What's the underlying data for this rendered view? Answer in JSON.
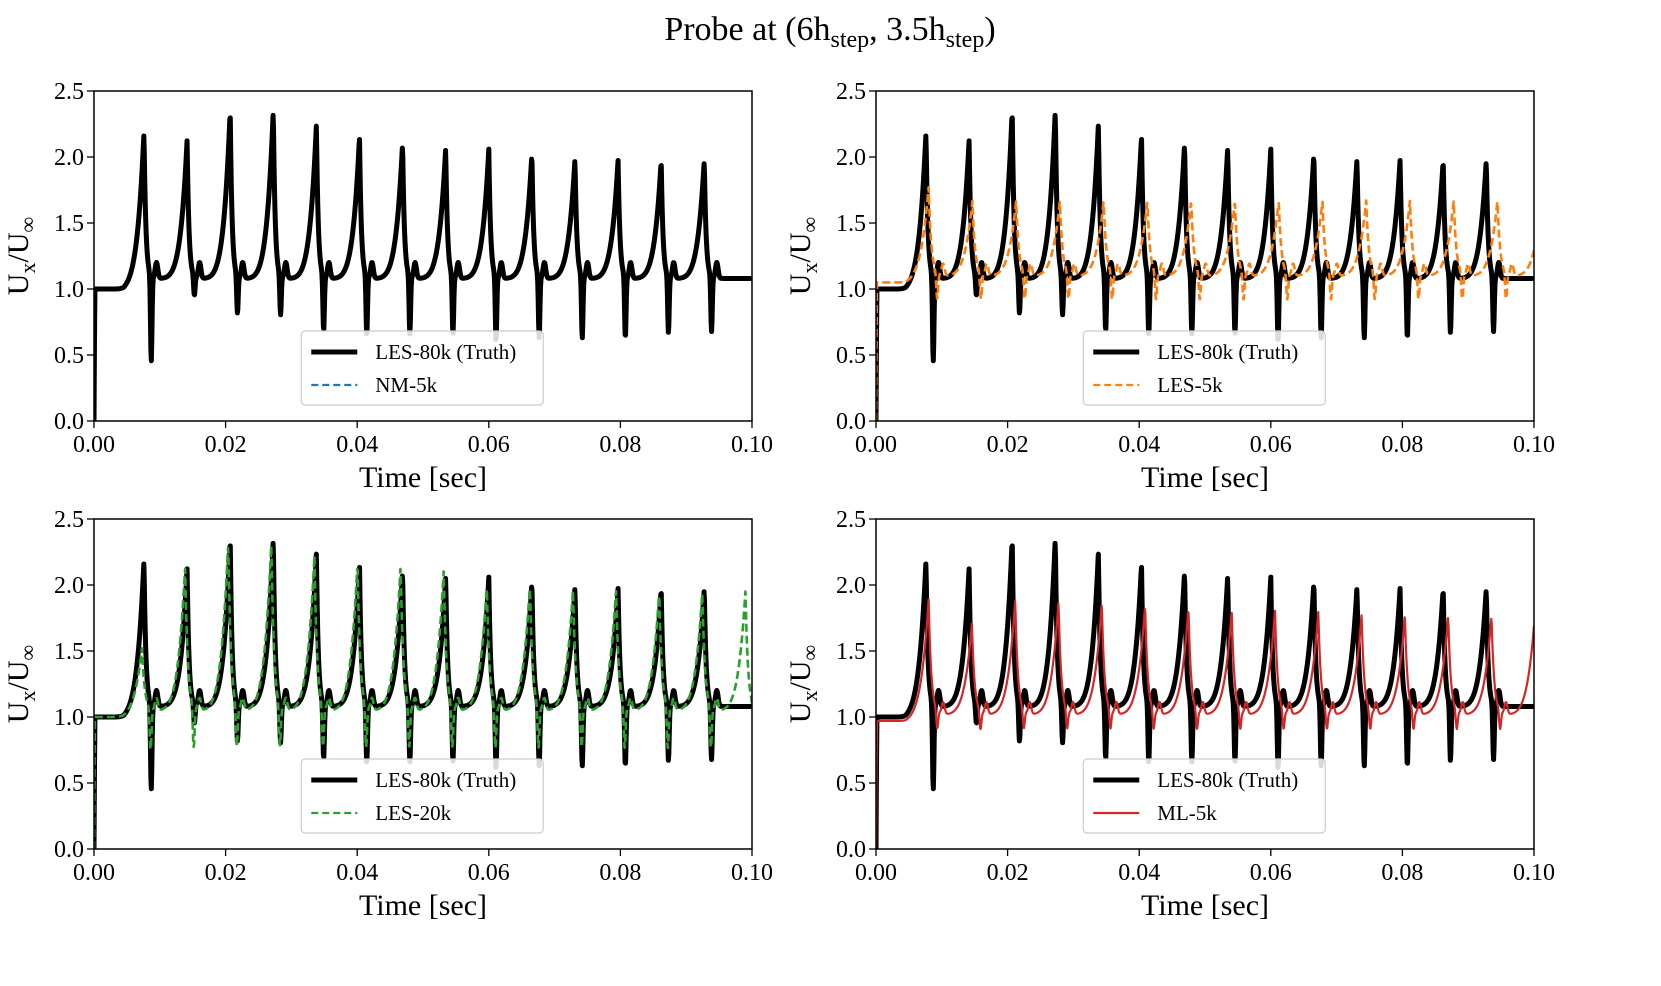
{
  "figure": {
    "title": {
      "main": "Probe at (6h",
      "sub1": "step",
      "mid": ", 3.5h",
      "sub2": "step",
      "end": ")"
    }
  },
  "colors": {
    "truth": "#000000",
    "NM-5k": "#1f77b4",
    "LES-5k": "#ff7f0e",
    "LES-20k": "#2ca02c",
    "ML-5k": "#d62728"
  },
  "truth_model": {
    "base": 1.0,
    "rise_start": 0.0055,
    "first_peak_time": 0.0076,
    "period": 0.00655,
    "peaks": [
      2.13,
      2.07,
      2.3,
      2.3,
      2.19,
      2.1,
      2.05,
      2.01,
      2.0,
      1.97,
      1.93,
      1.92,
      1.92,
      1.92
    ],
    "dips": [
      0.47,
      0.97,
      0.83,
      0.82,
      0.7,
      0.67,
      0.68,
      0.68,
      0.62,
      0.65,
      0.65,
      0.65,
      0.69,
      0.7
    ],
    "trough": 1.02
  },
  "chart_data": [
    {
      "type": "line",
      "xlabel": "Time [sec]",
      "ylabel": "U_x/U_∞",
      "xlim": [
        0,
        0.1
      ],
      "ylim": [
        0,
        2.5
      ],
      "xticks": [
        "0.00",
        "0.02",
        "0.04",
        "0.06",
        "0.08",
        "0.10"
      ],
      "yticks": [
        "0.0",
        "0.5",
        "1.0",
        "1.5",
        "2.0",
        "2.5"
      ],
      "legend_position": "lower-center",
      "series": [
        {
          "name": "LES-80k (Truth)",
          "style": "solid-thick",
          "color": "#000000"
        },
        {
          "name": "NM-5k",
          "style": "dashed",
          "color": "#1f77b4",
          "hidden_behind_truth": true
        }
      ]
    },
    {
      "type": "line",
      "xlabel": "Time [sec]",
      "ylabel": "U_x/U_∞",
      "xlim": [
        0,
        0.1
      ],
      "ylim": [
        0,
        2.5
      ],
      "xticks": [
        "0.00",
        "0.02",
        "0.04",
        "0.06",
        "0.08",
        "0.10"
      ],
      "yticks": [
        "0.0",
        "0.5",
        "1.0",
        "1.5",
        "2.0",
        "2.5"
      ],
      "legend_position": "lower-center",
      "series": [
        {
          "name": "LES-80k (Truth)",
          "style": "solid-thick",
          "color": "#000000"
        },
        {
          "name": "LES-5k",
          "style": "dashed",
          "color": "#ff7f0e",
          "model": {
            "base": 1.0,
            "first_peak_time": 0.008,
            "period": 0.00665,
            "peak": 1.62,
            "first_peak": 1.72,
            "trough": 1.05,
            "dip": 0.9
          }
        }
      ]
    },
    {
      "type": "line",
      "xlabel": "Time [sec]",
      "ylabel": "U_x/U_∞",
      "xlim": [
        0,
        0.1
      ],
      "ylim": [
        0,
        2.5
      ],
      "xticks": [
        "0.00",
        "0.02",
        "0.04",
        "0.06",
        "0.08",
        "0.10"
      ],
      "yticks": [
        "0.0",
        "0.5",
        "1.0",
        "1.5",
        "2.0",
        "2.5"
      ],
      "legend_position": "lower-center",
      "series": [
        {
          "name": "LES-80k (Truth)",
          "style": "solid-thick",
          "color": "#000000"
        },
        {
          "name": "LES-20k",
          "style": "dashed",
          "color": "#2ca02c",
          "model": {
            "base": 1.0,
            "first_peak_time": 0.0073,
            "period": 0.00655,
            "peaks": [
              1.48,
              2.09,
              2.28,
              2.27,
              2.17,
              2.12,
              2.1,
              2.06,
              1.95,
              1.95,
              1.92,
              1.92,
              1.9,
              1.9
            ],
            "trough": 1.0,
            "dip": 0.73
          }
        }
      ]
    },
    {
      "type": "line",
      "xlabel": "Time [sec]",
      "ylabel": "U_x/U_∞",
      "xlim": [
        0,
        0.1
      ],
      "ylim": [
        0,
        2.5
      ],
      "xticks": [
        "0.00",
        "0.02",
        "0.04",
        "0.06",
        "0.08",
        "0.10"
      ],
      "yticks": [
        "0.0",
        "0.5",
        "1.0",
        "1.5",
        "2.0",
        "2.5"
      ],
      "legend_position": "lower-center",
      "series": [
        {
          "name": "LES-80k (Truth)",
          "style": "solid-thick",
          "color": "#000000"
        },
        {
          "name": "ML-5k",
          "style": "solid-thin",
          "color": "#d62728",
          "model": {
            "base": 1.0,
            "first_peak_time": 0.008,
            "period": 0.00658,
            "peaks": [
              1.84,
              1.66,
              1.84,
              1.83,
              1.82,
              1.8,
              1.78,
              1.76,
              1.76,
              1.75,
              1.73,
              1.72,
              1.72,
              1.72
            ],
            "trough": 0.97,
            "dip": 0.88
          }
        }
      ]
    }
  ]
}
